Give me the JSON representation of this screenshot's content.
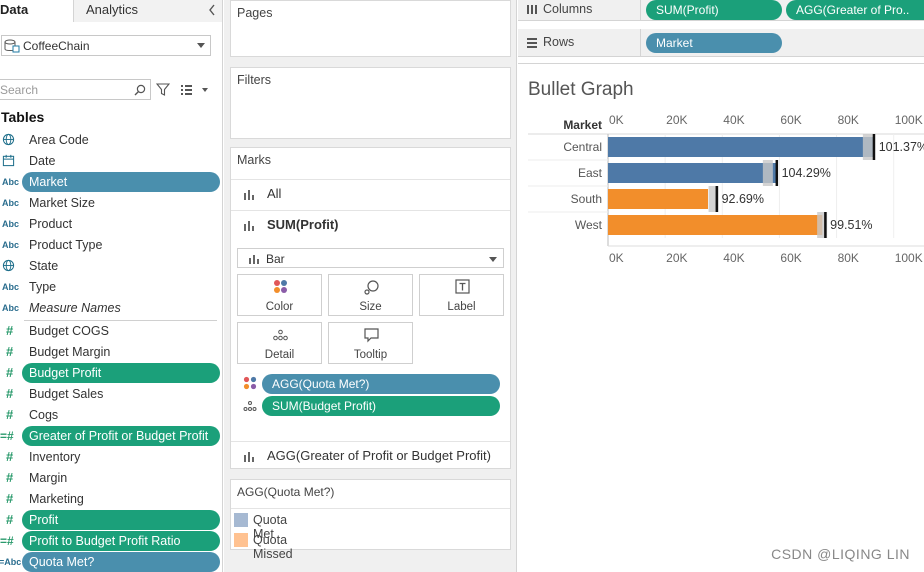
{
  "data_pane": {
    "tab_data": "Data",
    "tab_analytics": "Analytics",
    "datasource": "CoffeeChain",
    "search_placeholder": "Search",
    "tables_heading": "Tables",
    "fields": [
      {
        "label": "Area Code",
        "icon": "globe-icon",
        "style": "plain",
        "top": 140
      },
      {
        "label": "Date",
        "icon": "calendar-icon",
        "style": "plain",
        "top": 161
      },
      {
        "label": "Market",
        "icon": "abc-icon",
        "style": "pill-blue",
        "top": 182
      },
      {
        "label": "Market Size",
        "icon": "abc-icon",
        "style": "plain",
        "top": 203
      },
      {
        "label": "Product",
        "icon": "abc-icon",
        "style": "plain",
        "top": 224
      },
      {
        "label": "Product Type",
        "icon": "abc-icon",
        "style": "plain",
        "top": 245
      },
      {
        "label": "State",
        "icon": "globe-icon",
        "style": "plain",
        "top": 266
      },
      {
        "label": "Type",
        "icon": "abc-icon",
        "style": "plain",
        "top": 287
      },
      {
        "label": "Measure Names",
        "icon": "abc-icon",
        "style": "italic",
        "top": 308
      },
      {
        "label": "Budget COGS",
        "icon": "hash-icon",
        "style": "plain",
        "top": 331
      },
      {
        "label": "Budget Margin",
        "icon": "hash-icon",
        "style": "plain",
        "top": 352
      },
      {
        "label": "Budget Profit",
        "icon": "hash-icon",
        "style": "pill-green",
        "top": 373
      },
      {
        "label": "Budget Sales",
        "icon": "hash-icon",
        "style": "plain",
        "top": 394
      },
      {
        "label": "Cogs",
        "icon": "hash-icon",
        "style": "plain",
        "top": 415
      },
      {
        "label": "Greater of Profit or Budget Profit",
        "icon": "calc-hash-icon",
        "style": "pill-green",
        "top": 436
      },
      {
        "label": "Inventory",
        "icon": "hash-icon",
        "style": "plain",
        "top": 457
      },
      {
        "label": "Margin",
        "icon": "hash-icon",
        "style": "plain",
        "top": 478
      },
      {
        "label": "Marketing",
        "icon": "hash-icon",
        "style": "plain",
        "top": 499
      },
      {
        "label": "Profit",
        "icon": "hash-icon",
        "style": "pill-green",
        "top": 520
      },
      {
        "label": "Profit to Budget Profit Ratio",
        "icon": "calc-hash-icon",
        "style": "pill-green",
        "top": 541
      },
      {
        "label": "Quota Met?",
        "icon": "calc-abc-icon",
        "style": "pill-blue",
        "top": 562
      }
    ]
  },
  "cards": {
    "pages": "Pages",
    "filters": "Filters",
    "marks": "Marks",
    "marks_all": "All",
    "marks_profit": "SUM(Profit)",
    "mark_type": "Bar",
    "btn_color": "Color",
    "btn_size": "Size",
    "btn_label": "Label",
    "btn_detail": "Detail",
    "btn_tooltip": "Tooltip",
    "pill_quota": "AGG(Quota Met?)",
    "pill_budget": "SUM(Budget Profit)",
    "marks_greater": "AGG(Greater of Profit or Budget Profit)",
    "legend_title": "AGG(Quota Met?)",
    "legend_met": "Quota Met",
    "legend_missed": "Quota Missed"
  },
  "shelves": {
    "columns": "Columns",
    "rows": "Rows",
    "col_pill_1": "SUM(Profit)",
    "col_pill_2": "AGG(Greater of Pro..",
    "row_pill": "Market"
  },
  "colors": {
    "blue": "#4e79a7",
    "orange": "#f28e2b",
    "legend_blue": "#a6b9d2",
    "legend_orange": "#ffc291",
    "pill_blue": "#4a8fad",
    "pill_green": "#1ba07a",
    "reference_band": "#c8c8c8"
  },
  "chart_data": {
    "type": "bar",
    "title": "Bullet Graph",
    "row_header": "Market",
    "categories": [
      "Central",
      "East",
      "South",
      "West"
    ],
    "profit": [
      93000,
      59000,
      35000,
      75000
    ],
    "budget_profit": [
      92000,
      57000,
      38000,
      76000
    ],
    "ratio_labels": [
      "101.37%",
      "104.29%",
      "92.69%",
      "99.51%"
    ],
    "quota": [
      "Quota Met",
      "Quota Met",
      "Quota Missed",
      "Quota Missed"
    ],
    "x_ticks": [
      "0K",
      "20K",
      "40K",
      "60K",
      "80K",
      "100K"
    ],
    "x_tick_values": [
      0,
      20000,
      40000,
      60000,
      80000,
      100000
    ],
    "xlim": [
      0,
      105000
    ]
  },
  "watermark": "CSDN @LIQING LIN"
}
